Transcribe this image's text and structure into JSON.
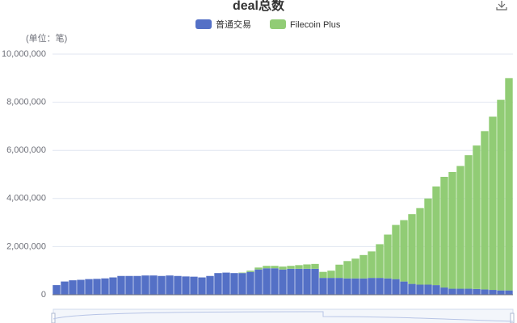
{
  "chart_data": {
    "type": "stacked_bar",
    "title": "deal总数",
    "y_label": "(单位：笔)",
    "categories": [
      null,
      null,
      null,
      null,
      null,
      null,
      null,
      null,
      null,
      null,
      null,
      null,
      null,
      null,
      null,
      null,
      null,
      null,
      null,
      null,
      null,
      null,
      null,
      null,
      null,
      null,
      null,
      null,
      null,
      null,
      null,
      null,
      null,
      null,
      null,
      null,
      null,
      null,
      null,
      null,
      null,
      null,
      null,
      null,
      null,
      null,
      null,
      null,
      null,
      null,
      null,
      null,
      null,
      null,
      null,
      null,
      null
    ],
    "series": [
      {
        "name": "普通交易",
        "color": "#5470c6",
        "values": [
          400000,
          550000,
          600000,
          620000,
          650000,
          660000,
          680000,
          720000,
          780000,
          780000,
          780000,
          800000,
          800000,
          780000,
          800000,
          780000,
          760000,
          750000,
          720000,
          780000,
          900000,
          920000,
          900000,
          900000,
          950000,
          1050000,
          1100000,
          1100000,
          1050000,
          1080000,
          1080000,
          1080000,
          1080000,
          700000,
          700000,
          700000,
          680000,
          680000,
          680000,
          700000,
          700000,
          680000,
          650000,
          550000,
          450000,
          420000,
          420000,
          400000,
          300000,
          250000,
          250000,
          250000,
          240000,
          220000,
          200000,
          180000,
          180000
        ]
      },
      {
        "name": "Filecoin Plus",
        "color": "#91cc75",
        "values": [
          0,
          0,
          0,
          0,
          0,
          0,
          0,
          0,
          0,
          0,
          0,
          0,
          0,
          0,
          0,
          0,
          0,
          0,
          0,
          0,
          0,
          0,
          0,
          20000,
          50000,
          80000,
          100000,
          100000,
          120000,
          120000,
          150000,
          180000,
          200000,
          250000,
          300000,
          550000,
          720000,
          820000,
          970000,
          1100000,
          1400000,
          1820000,
          2250000,
          2550000,
          2900000,
          3180000,
          3580000,
          4100000,
          4600000,
          4850000,
          5100000,
          5550000,
          5960000,
          6580000,
          7200000,
          7920000,
          8820000
        ]
      }
    ],
    "ylim": [
      0,
      10000000
    ],
    "yticks": [
      0,
      {
        "value": 2000000,
        "label": "2,000,000"
      },
      {
        "value": 4000000,
        "label": "4,000,000"
      },
      {
        "value": 6000000,
        "label": "6,000,000"
      },
      {
        "value": 8000000,
        "label": "8,000,000"
      },
      {
        "value": 10000000,
        "label": "10,000,000"
      }
    ],
    "grid": true
  }
}
